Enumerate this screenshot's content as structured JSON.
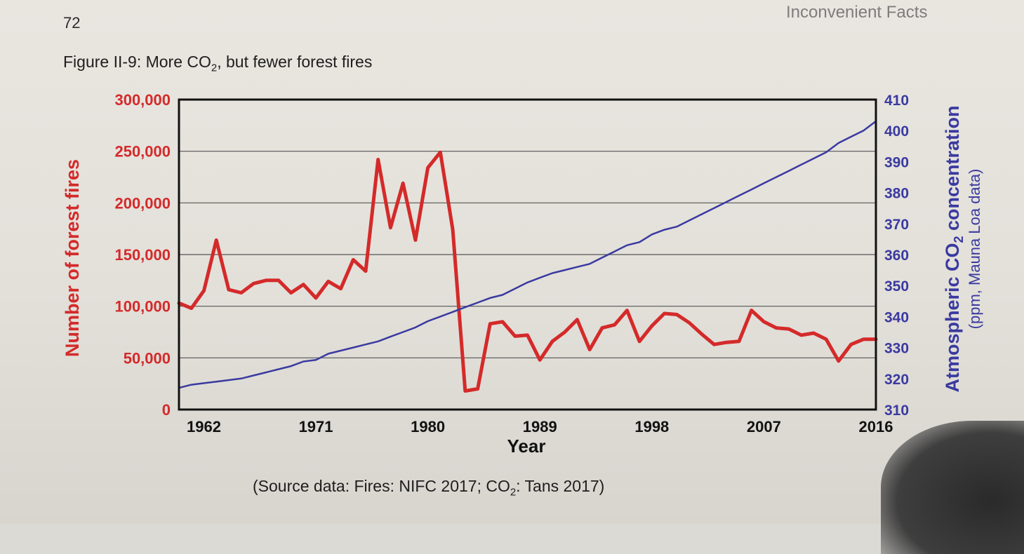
{
  "page": {
    "number": "72",
    "running_head": "Inconvenient Facts",
    "figure_title_pre": "Figure II-9: More CO",
    "figure_title_sub": "2",
    "figure_title_post": ", but fewer forest fires",
    "source_pre": "(Source data: Fires: NIFC 2017; CO",
    "source_sub": "2",
    "source_post": ": Tans 2017)"
  },
  "colors": {
    "fires": "#d42a2a",
    "co2": "#3a3aa0",
    "axis": "#111111",
    "grid": "#555555"
  },
  "chart_data": {
    "type": "line",
    "xlabel": "Year",
    "x_ticks": [
      1962,
      1971,
      1980,
      1989,
      1998,
      2007,
      2016
    ],
    "xlim": [
      1960,
      2016
    ],
    "left_axis": {
      "label": "Number of forest fires",
      "ylim": [
        0,
        300000
      ],
      "ticks": [
        "0",
        "50,000",
        "100,000",
        "150,000",
        "200,000",
        "250,000",
        "300,000"
      ]
    },
    "right_axis": {
      "label_main": "Atmospheric CO",
      "label_sub": "2",
      "label_tail": " concentration",
      "label2": "(ppm, Mauna Loa data)",
      "ylim": [
        310,
        410
      ],
      "ticks": [
        "310",
        "320",
        "330",
        "340",
        "350",
        "360",
        "370",
        "380",
        "390",
        "400",
        "410"
      ]
    },
    "x": [
      1960,
      1961,
      1962,
      1963,
      1964,
      1965,
      1966,
      1967,
      1968,
      1969,
      1970,
      1971,
      1972,
      1973,
      1974,
      1975,
      1976,
      1977,
      1978,
      1979,
      1980,
      1981,
      1982,
      1983,
      1984,
      1985,
      1986,
      1987,
      1988,
      1989,
      1990,
      1991,
      1992,
      1993,
      1994,
      1995,
      1996,
      1997,
      1998,
      1999,
      2000,
      2001,
      2002,
      2003,
      2004,
      2005,
      2006,
      2007,
      2008,
      2009,
      2010,
      2011,
      2012,
      2013,
      2014,
      2015,
      2016
    ],
    "series": [
      {
        "axis": "left",
        "values": [
          103000,
          98000,
          115000,
          164000,
          116000,
          113000,
          122000,
          125000,
          125000,
          113000,
          121000,
          108000,
          124000,
          117000,
          145000,
          134000,
          242000,
          176000,
          219000,
          164000,
          234000,
          249000,
          174000,
          18000,
          20000,
          83000,
          85000,
          71000,
          72000,
          48000,
          66000,
          75000,
          87000,
          58000,
          79000,
          82000,
          96000,
          66000,
          81000,
          93000,
          92000,
          84000,
          73000,
          63000,
          65000,
          66000,
          96000,
          85000,
          79000,
          78000,
          72000,
          74000,
          68000,
          47000,
          63000,
          68000,
          68000
        ]
      },
      {
        "axis": "right",
        "values": [
          317,
          318,
          318.5,
          319,
          319.5,
          320,
          321,
          322,
          323,
          324,
          325.5,
          326,
          328,
          329,
          330,
          331,
          332,
          333.5,
          335,
          336.5,
          338.5,
          340,
          341.5,
          343,
          344.5,
          346,
          347,
          349,
          351,
          352.5,
          354,
          355,
          356,
          357,
          359,
          361,
          363,
          364,
          366.5,
          368,
          369,
          371,
          373,
          375,
          377,
          379,
          381,
          383,
          385,
          387,
          389,
          391,
          393,
          396,
          398,
          400,
          403
        ]
      }
    ]
  }
}
